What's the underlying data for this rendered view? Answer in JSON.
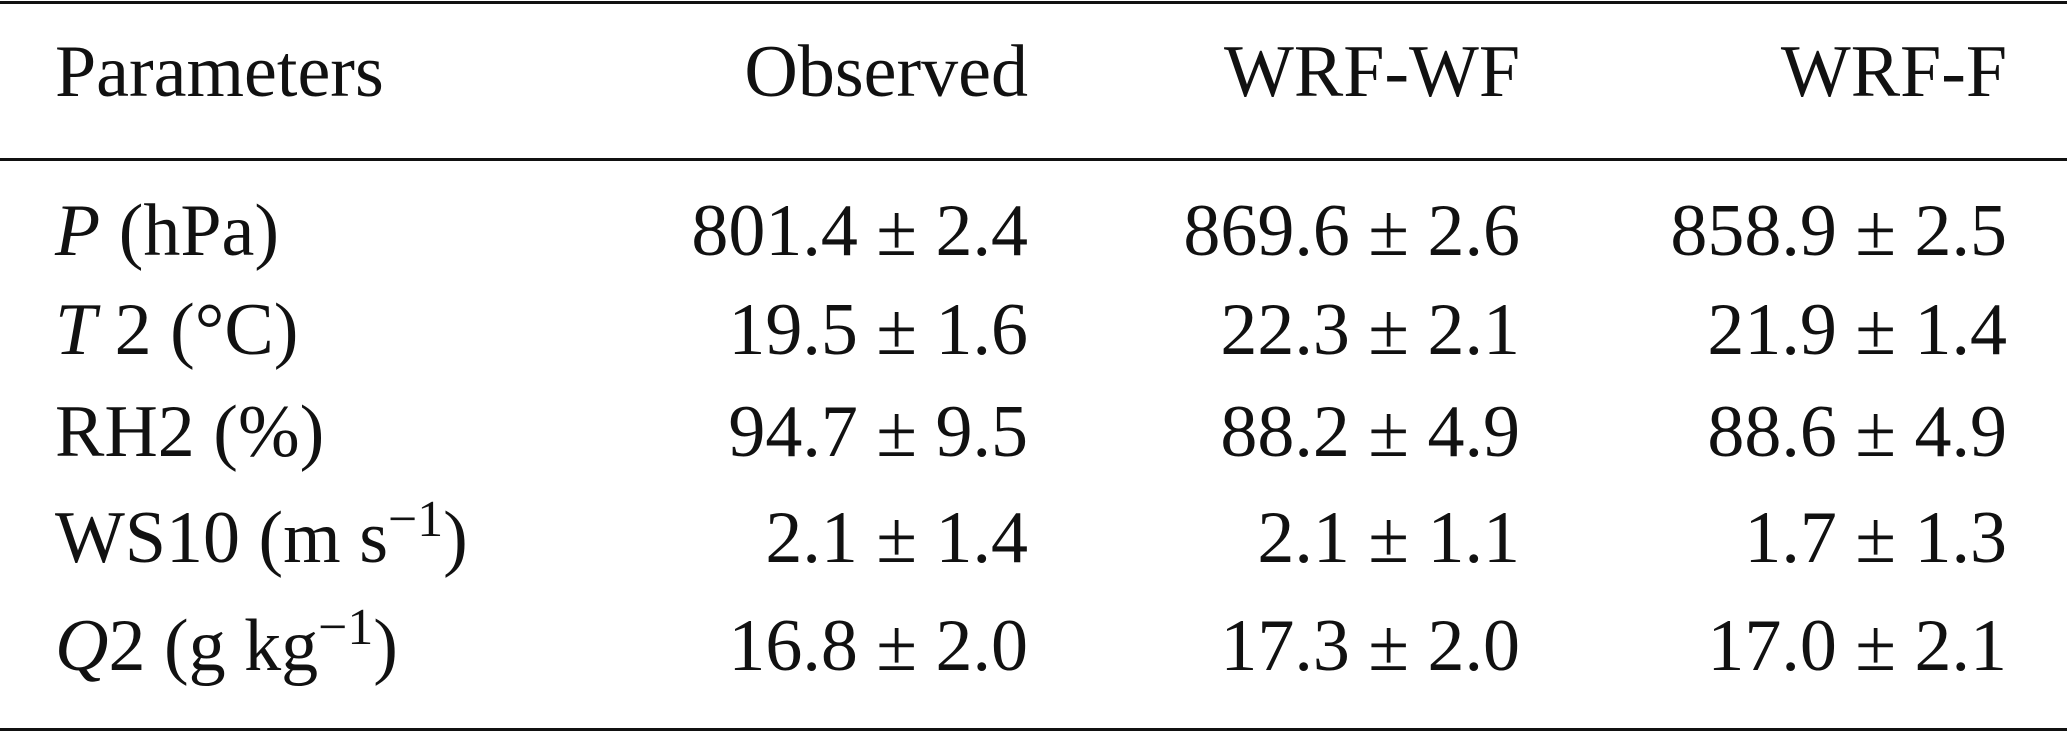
{
  "table": {
    "header": [
      "Parameters",
      "Observed",
      "WRF-WF",
      "WRF-F"
    ],
    "rows": [
      {
        "label": {
          "italic": "P",
          "text": " (hPa)"
        },
        "cells": [
          "801.4 ± 2.4",
          "869.6 ± 2.6",
          "858.9 ± 2.5"
        ]
      },
      {
        "label": {
          "italic": "T",
          "text": " 2 (°C)"
        },
        "cells": [
          "19.5 ± 1.6",
          "22.3 ± 2.1",
          "21.9 ± 1.4"
        ]
      },
      {
        "label": {
          "text": "RH2 (%)"
        },
        "cells": [
          "94.7 ± 9.5",
          "88.2 ± 4.9",
          "88.6 ± 4.9"
        ]
      },
      {
        "label": {
          "text": "WS10 (m s",
          "sup": "−1",
          "tail": ")"
        },
        "cells": [
          "2.1 ± 1.4",
          "2.1 ± 1.1",
          "1.7 ± 1.3"
        ]
      },
      {
        "label": {
          "italic": "Q",
          "text": "2 (g kg",
          "sup": "−1",
          "tail": ")"
        },
        "cells": [
          "16.8 ± 2.0",
          "17.3 ± 2.0",
          "17.0 ± 2.1"
        ]
      }
    ]
  }
}
